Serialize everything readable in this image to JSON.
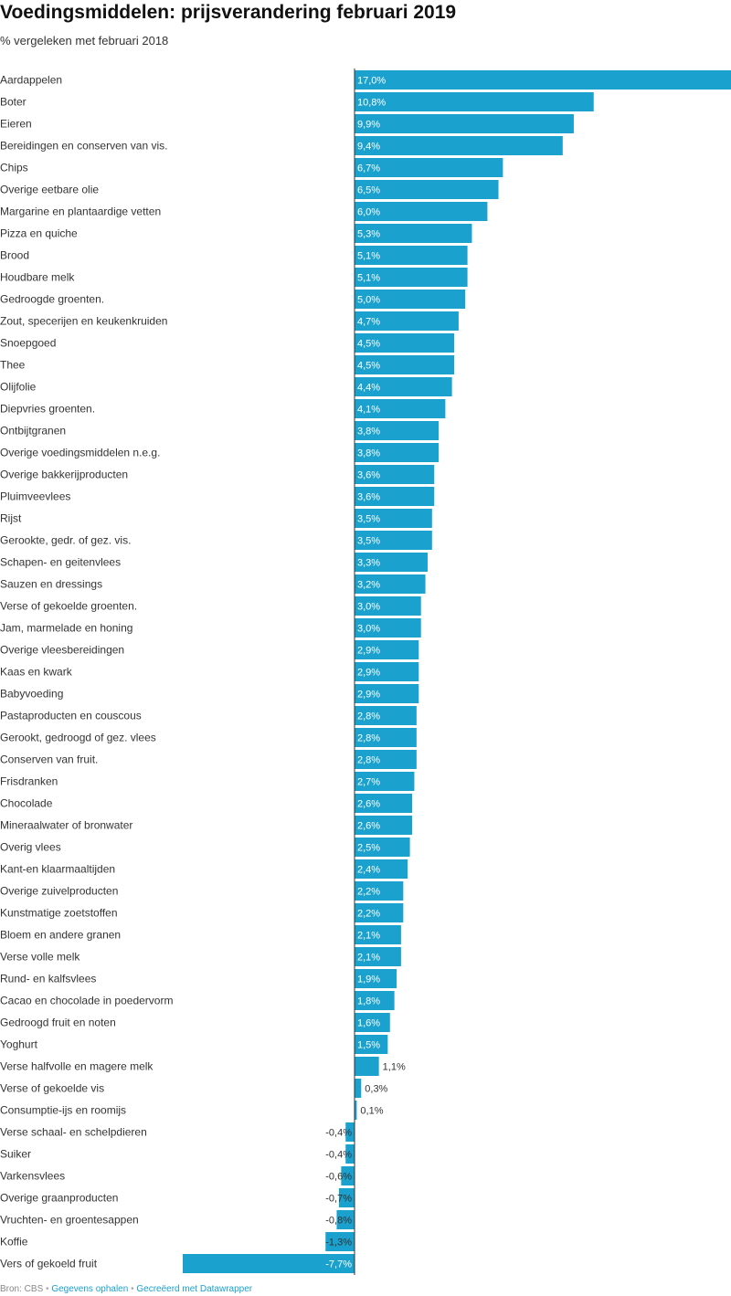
{
  "chart_data": {
    "type": "bar",
    "orientation": "horizontal",
    "title": "Voedingsmiddelen: prijsverandering februari 2019",
    "subtitle": "% vergeleken met februari 2018",
    "bar_color": "#1aa1ce",
    "value_suffix": "%",
    "xlim": [
      -7.7,
      17.0
    ],
    "categories": [
      "Aardappelen",
      "Boter",
      "Eieren",
      "Bereidingen en conserven van vis.",
      "Chips",
      "Overige eetbare olie",
      "Margarine en plantaardige vetten",
      "Pizza en quiche",
      "Brood",
      "Houdbare melk",
      "Gedroogde groenten.",
      "Zout, specerijen en keukenkruiden",
      "Snoepgoed",
      "Thee",
      "Olijfolie",
      "Diepvries groenten.",
      "Ontbijtgranen",
      "Overige voedingsmiddelen n.e.g.",
      "Overige bakkerijproducten",
      "Pluimveevlees",
      "Rijst",
      "Gerookte, gedr. of gez. vis.",
      "Schapen- en geitenvlees",
      "Sauzen en dressings",
      "Verse of gekoelde groenten.",
      "Jam, marmelade en honing",
      "Overige vleesbereidingen",
      "Kaas en kwark",
      "Babyvoeding",
      "Pastaproducten en couscous",
      "Gerookt, gedroogd of gez. vlees",
      "Conserven van fruit.",
      "Frisdranken",
      "Chocolade",
      "Mineraalwater of bronwater",
      "Overig vlees",
      "Kant-en klaarmaaltijden",
      "Overige zuivelproducten",
      "Kunstmatige zoetstoffen",
      "Bloem en andere granen",
      "Verse volle melk",
      "Rund- en kalfsvlees",
      "Cacao en chocolade in poedervorm",
      "Gedroogd fruit en noten",
      "Yoghurt",
      "Verse halfvolle en magere melk",
      "Verse of gekoelde vis",
      "Consumptie-ijs en roomijs",
      "Verse schaal- en schelpdieren",
      "Suiker",
      "Varkensvlees",
      "Overige graanproducten",
      "Vruchten- en groentesappen",
      "Koffie",
      "Vers of gekoeld fruit"
    ],
    "values": [
      17.0,
      10.8,
      9.9,
      9.4,
      6.7,
      6.5,
      6.0,
      5.3,
      5.1,
      5.1,
      5.0,
      4.7,
      4.5,
      4.5,
      4.4,
      4.1,
      3.8,
      3.8,
      3.6,
      3.6,
      3.5,
      3.5,
      3.3,
      3.2,
      3.0,
      3.0,
      2.9,
      2.9,
      2.9,
      2.8,
      2.8,
      2.8,
      2.7,
      2.6,
      2.6,
      2.5,
      2.4,
      2.2,
      2.2,
      2.1,
      2.1,
      1.9,
      1.8,
      1.6,
      1.5,
      1.1,
      0.3,
      0.1,
      -0.4,
      -0.4,
      -0.6,
      -0.7,
      -0.8,
      -1.3,
      -7.7
    ],
    "data_labels": [
      "17,0%",
      "10,8%",
      "9,9%",
      "9,4%",
      "6,7%",
      "6,5%",
      "6,0%",
      "5,3%",
      "5,1%",
      "5,1%",
      "5,0%",
      "4,7%",
      "4,5%",
      "4,5%",
      "4,4%",
      "4,1%",
      "3,8%",
      "3,8%",
      "3,6%",
      "3,6%",
      "3,5%",
      "3,5%",
      "3,3%",
      "3,2%",
      "3,0%",
      "3,0%",
      "2,9%",
      "2,9%",
      "2,9%",
      "2,8%",
      "2,8%",
      "2,8%",
      "2,7%",
      "2,6%",
      "2,6%",
      "2,5%",
      "2,4%",
      "2,2%",
      "2,2%",
      "2,1%",
      "2,1%",
      "1,9%",
      "1,8%",
      "1,6%",
      "1,5%",
      "1,1%",
      "0,3%",
      "0,1%",
      "-0,4%",
      "-0,4%",
      "-0,6%",
      "-0,7%",
      "-0,8%",
      "-1,3%",
      "-7,7%"
    ]
  },
  "footer": {
    "source": "Bron: CBS",
    "separator": "•",
    "get_data_link": "Gegevens ophalen",
    "created_with_link": "Gecreëerd met Datawrapper"
  }
}
